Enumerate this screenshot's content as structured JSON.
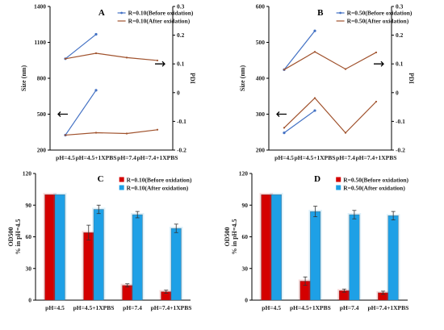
{
  "chart_data": [
    {
      "panel_label": "A",
      "type": "line",
      "categories": [
        "pH=4.5",
        "pH=4.5+1XPBS",
        "pH=7.4",
        "pH=7.4+1XPBS"
      ],
      "left_axis": {
        "label": "Size (nm)",
        "ylim": [
          200,
          1400
        ],
        "ticks": [
          200,
          500,
          800,
          1100,
          1400
        ]
      },
      "right_axis": {
        "label": "PDI",
        "ylim": [
          -0.2,
          0.3
        ],
        "ticks": [
          "-0.2",
          "-0.1",
          "0",
          "0.1",
          "0.2",
          "0.3"
        ]
      },
      "legend": [
        "R=0.10(Before oxidation)",
        "R=0.10(After oxidation)"
      ],
      "series": [
        {
          "name": "R=0.10(Before oxidation)",
          "axis": "right",
          "color": "#4472c4",
          "marker": true,
          "x": [
            0,
            1
          ],
          "values": [
            0.118,
            0.203
          ]
        },
        {
          "name": "R=0.10(After oxidation)",
          "axis": "right",
          "color": "#a0522d",
          "marker": false,
          "x": [
            0,
            1,
            2,
            3
          ],
          "values": [
            0.118,
            0.137,
            0.122,
            0.112
          ]
        },
        {
          "name": "R=0.10(Before oxidation)",
          "axis": "left",
          "color": "#4472c4",
          "marker": true,
          "x": [
            0,
            1
          ],
          "values": [
            325,
            700
          ]
        },
        {
          "name": "R=0.10(After oxidation)",
          "axis": "left",
          "color": "#a0522d",
          "marker": false,
          "x": [
            0,
            1,
            2,
            3
          ],
          "values": [
            325,
            345,
            338,
            370
          ]
        }
      ]
    },
    {
      "panel_label": "B",
      "type": "line",
      "categories": [
        "pH=4.5",
        "pH=4.5+1XPBS",
        "pH=7.4",
        "pH=7.4+1XPBS"
      ],
      "left_axis": {
        "label": "Size (nm)",
        "ylim": [
          200,
          600
        ],
        "ticks": [
          200,
          300,
          400,
          500,
          600
        ]
      },
      "right_axis": {
        "label": "PDI",
        "ylim": [
          -0.2,
          0.3
        ],
        "ticks": [
          "-0.2",
          "-0.1",
          "0",
          "0.1",
          "0.2",
          "0.3"
        ]
      },
      "legend": [
        "R=0.50(Before oxidation)",
        "R=0.50(After oxidation)"
      ],
      "series": [
        {
          "name": "R=0.50(Before oxidation)",
          "axis": "right",
          "color": "#4472c4",
          "marker": true,
          "x": [
            0,
            1
          ],
          "values": [
            0.08,
            0.215
          ]
        },
        {
          "name": "R=0.50(After oxidation)",
          "axis": "right",
          "color": "#a0522d",
          "marker": false,
          "x": [
            0,
            1,
            2,
            3
          ],
          "values": [
            0.08,
            0.142,
            0.082,
            0.14
          ]
        },
        {
          "name": "R=0.50(Before oxidation)",
          "axis": "left",
          "color": "#4472c4",
          "marker": true,
          "x": [
            0,
            1
          ],
          "values": [
            248,
            310
          ]
        },
        {
          "name": "R=0.50(After oxidation)",
          "axis": "left",
          "color": "#a0522d",
          "marker": false,
          "x": [
            0,
            1,
            2,
            3
          ],
          "values": [
            262,
            345,
            248,
            335
          ]
        }
      ]
    },
    {
      "panel_label": "C",
      "type": "bar",
      "categories": [
        "pH=4.5",
        "pH=4.5+1XPBS",
        "pH=7.4",
        "pH=7.4+1XPBS"
      ],
      "ylabel": "OD500\n% in pH=4.5",
      "ylim": [
        0,
        120
      ],
      "yticks": [
        0,
        30,
        60,
        90,
        120
      ],
      "legend": [
        "R=0.10(Before oxidation)",
        "R=0.10(After oxidation)"
      ],
      "series": [
        {
          "name": "R=0.10(Before oxidation)",
          "color": "#d40000",
          "values": [
            100,
            64,
            14,
            8
          ],
          "errors": [
            0,
            7,
            1.5,
            1.5
          ]
        },
        {
          "name": "R=0.10(After oxidation)",
          "color": "#1ea0e6",
          "values": [
            100,
            86,
            81,
            68
          ],
          "errors": [
            0,
            4,
            3,
            4
          ]
        }
      ]
    },
    {
      "panel_label": "D",
      "type": "bar",
      "categories": [
        "pH=4.5",
        "pH=4.5+1XPBS",
        "pH=7.4",
        "pH=7.4+1XPBS"
      ],
      "ylabel": "OD500\n% in pH=4.5",
      "ylim": [
        0,
        120
      ],
      "yticks": [
        0,
        30,
        60,
        90,
        120
      ],
      "legend": [
        "R=0.50(Before oxidation)",
        "R=0.50(After oxidation)"
      ],
      "series": [
        {
          "name": "R=0.50(Before oxidation)",
          "color": "#d40000",
          "values": [
            100,
            18,
            9,
            7
          ],
          "errors": [
            0,
            4,
            1.5,
            1.5
          ]
        },
        {
          "name": "R=0.50(After oxidation)",
          "color": "#1ea0e6",
          "values": [
            100,
            84,
            81,
            80
          ],
          "errors": [
            0,
            5,
            4,
            4
          ]
        }
      ]
    }
  ]
}
